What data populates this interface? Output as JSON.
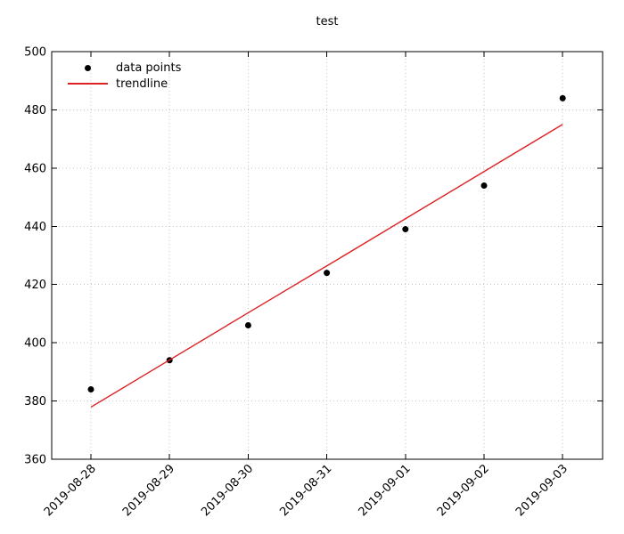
{
  "colors": {
    "background": "#ffffff",
    "text": "#000000",
    "border": "#000000",
    "grid": "#c6c6c6",
    "points": "#000000",
    "trendline": "#dd2222"
  },
  "legend": {
    "items": [
      {
        "label": "data points",
        "marker": "dot"
      },
      {
        "label": "trendline",
        "marker": "line"
      }
    ]
  },
  "chart_data": {
    "type": "scatter",
    "title": "test",
    "xlabel": "",
    "ylabel": "",
    "x": [
      "2019-08-28",
      "2019-08-29",
      "2019-08-30",
      "2019-08-31",
      "2019-09-01",
      "2019-09-02",
      "2019-09-03"
    ],
    "series": [
      {
        "name": "data points",
        "type": "points",
        "values": [
          384,
          394,
          406,
          424,
          439,
          454,
          484
        ]
      },
      {
        "name": "trendline",
        "type": "line",
        "values": [
          377.9,
          394.1,
          410.3,
          426.4,
          442.6,
          458.8,
          475.0
        ]
      }
    ],
    "ylim": [
      360,
      500
    ],
    "ytick_step": 20,
    "yticks": [
      360,
      380,
      400,
      420,
      440,
      460,
      480,
      500
    ],
    "grid": "dotted",
    "legend_position": "top-left",
    "xtick_rotation": 45
  }
}
